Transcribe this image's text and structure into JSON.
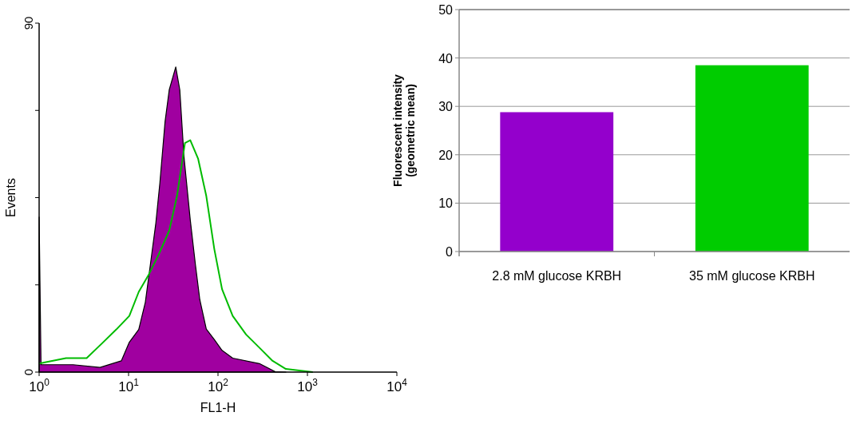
{
  "chart_data": [
    {
      "type": "area",
      "xlabel": "FL1-H",
      "ylabel": "Events",
      "log": "x",
      "grid": false,
      "xlim": [
        1,
        10000
      ],
      "xticks": [
        {
          "value": 1,
          "label": "10$^{0}$"
        },
        {
          "value": 10,
          "label": "10$^{1}$"
        },
        {
          "value": 100,
          "label": "10$^{2}$"
        },
        {
          "value": 1000,
          "label": "10$^{3}$"
        },
        {
          "value": 10000,
          "label": "10$^{4}$"
        }
      ],
      "ylim": [
        0,
        90
      ],
      "yticks": [
        0,
        {
          "value": 22.5,
          "label": null
        },
        {
          "value": 45,
          "label": null
        },
        {
          "value": 67.5,
          "label": null
        },
        90
      ],
      "series": [
        {
          "type": "area",
          "color": "#a000a0",
          "x": [
            1,
            1.05,
            2.4,
            4.8,
            8.3,
            10.2,
            13,
            15.4,
            17.6,
            20.2,
            22.4,
            25.6,
            28.5,
            33.7,
            37.4,
            41.6,
            49,
            56,
            62.6,
            74,
            90.8,
            111,
            146,
            290,
            437,
            574
          ],
          "values": [
            40,
            1.9,
            1.9,
            1.2,
            2.9,
            7.7,
            11,
            18,
            28,
            38.5,
            48.8,
            64.6,
            72.8,
            78.7,
            72.8,
            55.7,
            39.2,
            27.6,
            18.7,
            11.1,
            8.4,
            5.6,
            3.6,
            2.2,
            0.1,
            0
          ]
        },
        {
          "type": "line",
          "color": "#00bb00",
          "x": [
            1,
            2,
            3.4,
            5.2,
            7.3,
            10.2,
            13,
            16.5,
            21.7,
            28.5,
            34.8,
            42.7,
            49,
            60,
            74,
            91,
            111,
            146,
            206,
            290,
            408,
            574,
            1150
          ],
          "values": [
            2.2,
            3.6,
            3.6,
            7.7,
            11,
            14.5,
            20.7,
            24.8,
            30.3,
            36.5,
            45.4,
            59.1,
            59.8,
            55,
            45.4,
            31.7,
            21.4,
            14.5,
            9.7,
            6.3,
            2.9,
            0.8,
            0
          ]
        }
      ]
    },
    {
      "type": "bar",
      "ylabel": "Fluorescent intensity\n(geometric mean)",
      "grid": "y",
      "categories": [
        "2.8 mM glucose KRBH",
        "35 mM glucose KRBH"
      ],
      "values": [
        28.8,
        38.5
      ],
      "colors": [
        "#9400cc",
        "#00cc00"
      ],
      "ylim": [
        0,
        50
      ],
      "yticks": [
        0,
        10,
        20,
        30,
        40,
        50
      ]
    }
  ]
}
